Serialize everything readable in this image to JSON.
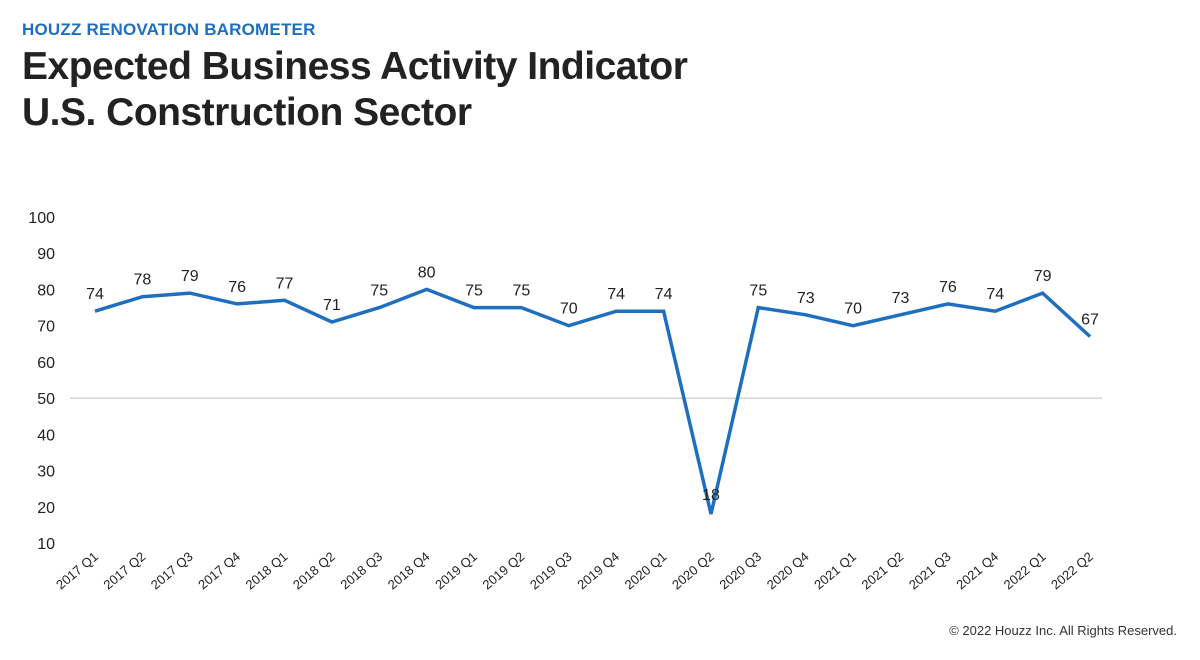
{
  "header": {
    "kicker": "HOUZZ RENOVATION BAROMETER",
    "title_line1": "Expected Business Activity Indicator",
    "title_line2": "U.S. Construction Sector"
  },
  "footer": {
    "copyright": "© 2022 Houzz Inc. All Rights Reserved."
  },
  "colors": {
    "accent": "#1f6fc0",
    "line": "#1f6fc0",
    "reference_line": "#bfbfbf"
  },
  "chart_data": {
    "type": "line",
    "title": "Expected Business Activity Indicator U.S. Construction Sector",
    "xlabel": "",
    "ylabel": "",
    "ylim": [
      10,
      100
    ],
    "yticks": [
      10,
      20,
      30,
      40,
      50,
      60,
      70,
      80,
      90,
      100
    ],
    "reference_line": 50,
    "grid": false,
    "categories": [
      "2017 Q1",
      "2017 Q2",
      "2017 Q3",
      "2017 Q4",
      "2018 Q1",
      "2018 Q2",
      "2018 Q3",
      "2018 Q4",
      "2019 Q1",
      "2019 Q2",
      "2019 Q3",
      "2019 Q4",
      "2020 Q1",
      "2020 Q2",
      "2020 Q3",
      "2020 Q4",
      "2021 Q1",
      "2021 Q2",
      "2021 Q3",
      "2021 Q4",
      "2022 Q1",
      "2022 Q2"
    ],
    "series": [
      {
        "values": [
          74,
          78,
          79,
          76,
          77,
          71,
          75,
          80,
          75,
          75,
          70,
          74,
          74,
          18,
          75,
          73,
          70,
          73,
          76,
          74,
          79,
          67
        ]
      }
    ]
  }
}
